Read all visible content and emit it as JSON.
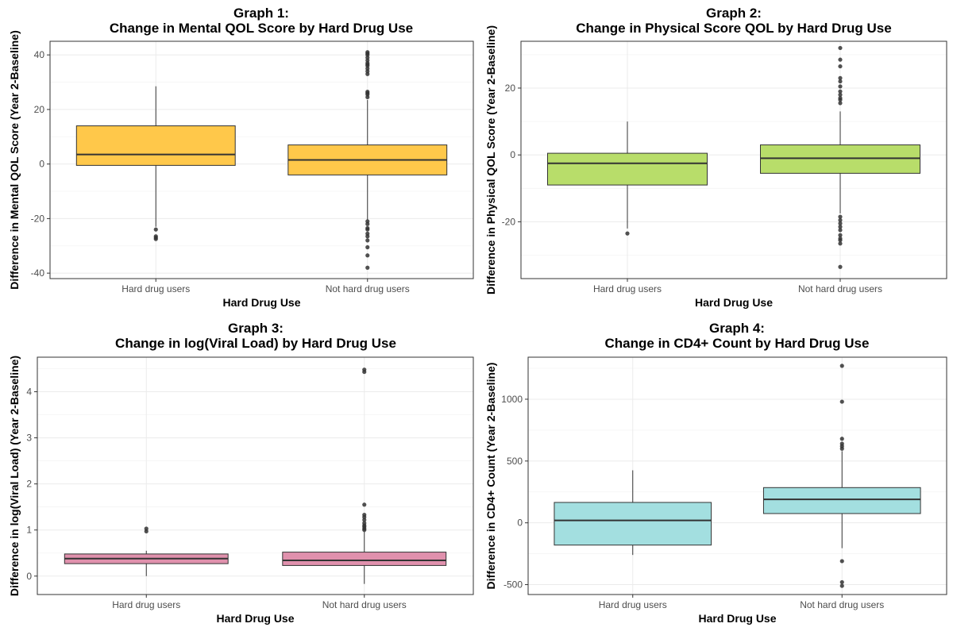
{
  "chart_data": [
    {
      "type": "box",
      "title_line1": "Graph 1:",
      "title_line2": "Change in Mental QOL Score by Hard Drug Use",
      "xlabel": "Hard Drug Use",
      "ylabel": "Difference in Mental QOL Score (Year 2-Baseline)",
      "categories": [
        "Hard drug users",
        "Not hard drug users"
      ],
      "ylim": [
        -42,
        45
      ],
      "yticks": [
        -40,
        -20,
        0,
        20,
        40
      ],
      "grid": true,
      "fill_color": "#ffc84a",
      "boxes": [
        {
          "q1": -0.5,
          "median": 3.5,
          "q3": 14,
          "whisker_low": -23,
          "whisker_high": 28.5,
          "outliers": [
            -24,
            -26.5,
            -27,
            -27.5
          ]
        },
        {
          "q1": -4,
          "median": 1.5,
          "q3": 7,
          "whisker_low": -20.5,
          "whisker_high": 23.5,
          "outliers": [
            -21,
            -22,
            -23.5,
            -24,
            -25.5,
            -26.5,
            -28,
            -30.5,
            -33.5,
            -38,
            24.5,
            25.5,
            26,
            26.5,
            33,
            34,
            35,
            36,
            36.5,
            37,
            38,
            39,
            40,
            40.5,
            41
          ]
        }
      ]
    },
    {
      "type": "box",
      "title_line1": "Graph 2:",
      "title_line2": "Change in Physical Score QOL by Hard Drug Use",
      "xlabel": "Hard Drug Use",
      "ylabel": "Difference in Physical QOL Score (Year 2-Baseline)",
      "categories": [
        "Hard drug users",
        "Not hard drug users"
      ],
      "ylim": [
        -37,
        34
      ],
      "yticks": [
        -20,
        0,
        20
      ],
      "grid": true,
      "fill_color": "#b8dd6a",
      "boxes": [
        {
          "q1": -9,
          "median": -2.5,
          "q3": 0.5,
          "whisker_low": -22,
          "whisker_high": 10,
          "outliers": [
            -23.5
          ]
        },
        {
          "q1": -5.5,
          "median": -1,
          "q3": 3,
          "whisker_low": -17.5,
          "whisker_high": 13,
          "outliers": [
            -18.5,
            -19.5,
            -20.5,
            -21.5,
            -22.5,
            -24,
            -25,
            -25.5,
            -26.5,
            -33.5,
            15.5,
            16.5,
            17,
            18,
            19,
            20.5,
            22,
            23,
            26.5,
            28.5,
            32
          ]
        }
      ]
    },
    {
      "type": "box",
      "title_line1": "Graph 3:",
      "title_line2": "Change in log(Viral Load) by Hard Drug Use",
      "xlabel": "Hard Drug Use",
      "ylabel": "Difference in log(Viral Load) (Year 2-Baseline)",
      "categories": [
        "Hard drug users",
        "Not hard drug users"
      ],
      "ylim": [
        -0.4,
        4.75
      ],
      "yticks": [
        0,
        1,
        2,
        3,
        4
      ],
      "grid": true,
      "fill_color": "#e091ad",
      "boxes": [
        {
          "q1": 0.27,
          "median": 0.38,
          "q3": 0.48,
          "whisker_low": 0.0,
          "whisker_high": 0.55,
          "outliers": [
            0.97,
            1.03
          ]
        },
        {
          "q1": 0.23,
          "median": 0.34,
          "q3": 0.52,
          "whisker_low": -0.17,
          "whisker_high": 0.96,
          "outliers": [
            1.0,
            1.03,
            1.07,
            1.1,
            1.15,
            1.22,
            1.28,
            1.33,
            1.55,
            4.43,
            4.48
          ]
        }
      ]
    },
    {
      "type": "box",
      "title_line1": "Graph 4:",
      "title_line2": "Change in CD4+ Count by Hard Drug Use",
      "xlabel": "Hard Drug Use",
      "ylabel": "Difference in CD4+ Count (Year 2-Baseline)",
      "categories": [
        "Hard drug users",
        "Not hard drug users"
      ],
      "ylim": [
        -580,
        1340
      ],
      "yticks": [
        -500,
        0,
        500,
        1000
      ],
      "grid": true,
      "fill_color": "#a3dfe0",
      "boxes": [
        {
          "q1": -180,
          "median": 20,
          "q3": 165,
          "whisker_low": -260,
          "whisker_high": 425,
          "outliers": []
        },
        {
          "q1": 75,
          "median": 190,
          "q3": 285,
          "whisker_low": -205,
          "whisker_high": 580,
          "outliers": [
            -310,
            -480,
            -510,
            600,
            620,
            640,
            680,
            980,
            1270
          ]
        }
      ]
    }
  ]
}
